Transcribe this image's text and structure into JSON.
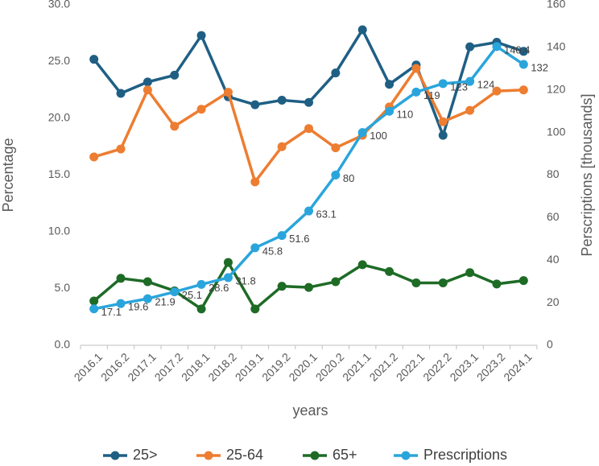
{
  "chart_data": {
    "type": "line",
    "categories": [
      "2016.1",
      "2016.2",
      "2017.1",
      "2017.2",
      "2018.1",
      "2018.2",
      "2019.1",
      "2019.2",
      "2020.1",
      "2020.2",
      "2021.1",
      "2021.2",
      "2022.1",
      "2022.2",
      "2023.1",
      "2023.2",
      "2024.1"
    ],
    "xlabel": "years",
    "ylabel": "Percentage",
    "y2label": "Perscriptions [thousands]",
    "ylim": [
      0,
      30
    ],
    "y2lim": [
      0,
      160
    ],
    "yticks": [
      "0.0",
      "5.0",
      "10.0",
      "15.0",
      "20.0",
      "25.0",
      "30.0"
    ],
    "y2ticks": [
      "0",
      "20",
      "40",
      "60",
      "80",
      "100",
      "120",
      "140",
      "160"
    ],
    "grid": false,
    "legend_position": "bottom",
    "series": [
      {
        "name": "25>",
        "axis": "left",
        "color": "#1f5f84",
        "values": [
          25.2,
          22.2,
          23.2,
          23.8,
          27.3,
          21.9,
          21.2,
          21.6,
          21.4,
          24.0,
          27.8,
          23.0,
          24.7,
          18.5,
          26.3,
          26.7,
          25.9
        ]
      },
      {
        "name": "25-64",
        "axis": "left",
        "color": "#ed7d31",
        "values": [
          16.6,
          17.3,
          22.5,
          19.3,
          20.8,
          22.3,
          14.4,
          17.5,
          19.1,
          17.4,
          18.5,
          21.0,
          24.4,
          19.7,
          20.7,
          22.4,
          22.5
        ]
      },
      {
        "name": "65+",
        "axis": "left",
        "color": "#1e6b26",
        "values": [
          3.9,
          5.9,
          5.6,
          4.8,
          3.2,
          7.3,
          3.2,
          5.2,
          5.1,
          5.6,
          7.1,
          6.5,
          5.5,
          5.5,
          6.4,
          5.4,
          5.7
        ]
      },
      {
        "name": "Prescriptions",
        "axis": "right",
        "color": "#2aa5dc",
        "values": [
          17.1,
          19.6,
          21.9,
          25.1,
          28.6,
          31.8,
          45.8,
          51.6,
          63.1,
          80,
          100,
          110,
          119,
          123,
          124,
          140.4,
          132
        ],
        "labels": [
          "17.1",
          "19.6",
          "21.9",
          "25.1",
          "28.6",
          "31.8",
          "45.8",
          "51.6",
          "63.1",
          "80",
          "100",
          "110",
          "119",
          "123",
          "124",
          "140.4",
          "132"
        ]
      }
    ]
  }
}
